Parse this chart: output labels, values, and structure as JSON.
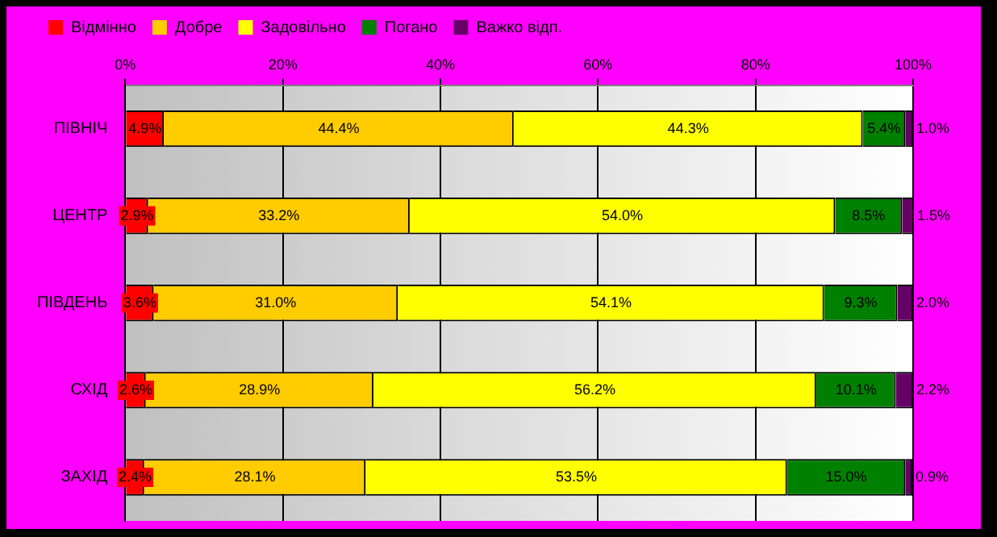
{
  "chart_data": {
    "type": "bar",
    "orientation": "horizontal",
    "stacked": true,
    "categories": [
      "ПІВНІЧ",
      "ЦЕНТР",
      "ПІВДЕНЬ",
      "СХІД",
      "ЗАХІД"
    ],
    "series": [
      {
        "name": "Відмінно",
        "color": "#ff0000",
        "values": [
          4.9,
          2.9,
          3.6,
          2.6,
          2.4
        ],
        "value_labels": [
          "4.9%",
          "2.9%",
          "3.6%",
          "2.6%",
          "2.4%"
        ]
      },
      {
        "name": "Добре",
        "color": "#ffcc00",
        "values": [
          44.4,
          33.2,
          31.0,
          28.9,
          28.1
        ],
        "value_labels": [
          "44.4%",
          "33.2%",
          "31.0%",
          "28.9%",
          "28.1%"
        ]
      },
      {
        "name": "Задовільно",
        "color": "#ffff00",
        "values": [
          44.3,
          54.0,
          54.1,
          56.2,
          53.5
        ],
        "value_labels": [
          "44.3%",
          "54.0%",
          "54.1%",
          "56.2%",
          "53.5%"
        ]
      },
      {
        "name": "Погано",
        "color": "#008000",
        "values": [
          5.4,
          8.5,
          9.3,
          10.1,
          15.0
        ],
        "value_labels": [
          "5.4%",
          "8.5%",
          "9.3%",
          "10.1%",
          "15.0%"
        ]
      },
      {
        "name": "Важко відп.",
        "color": "#660066",
        "values": [
          1.0,
          1.5,
          2.0,
          2.2,
          0.9
        ],
        "value_labels": [
          "1.0%",
          "1.5%",
          "2.0%",
          "2.2%",
          "0.9%"
        ]
      }
    ],
    "xlim": [
      0,
      100
    ],
    "xticks": [
      {
        "value": 0,
        "label": "0%"
      },
      {
        "value": 20,
        "label": "20%"
      },
      {
        "value": 40,
        "label": "40%"
      },
      {
        "value": 60,
        "label": "60%"
      },
      {
        "value": 80,
        "label": "80%"
      },
      {
        "value": 100,
        "label": "100%"
      }
    ],
    "grid": "x",
    "legend": "top"
  }
}
